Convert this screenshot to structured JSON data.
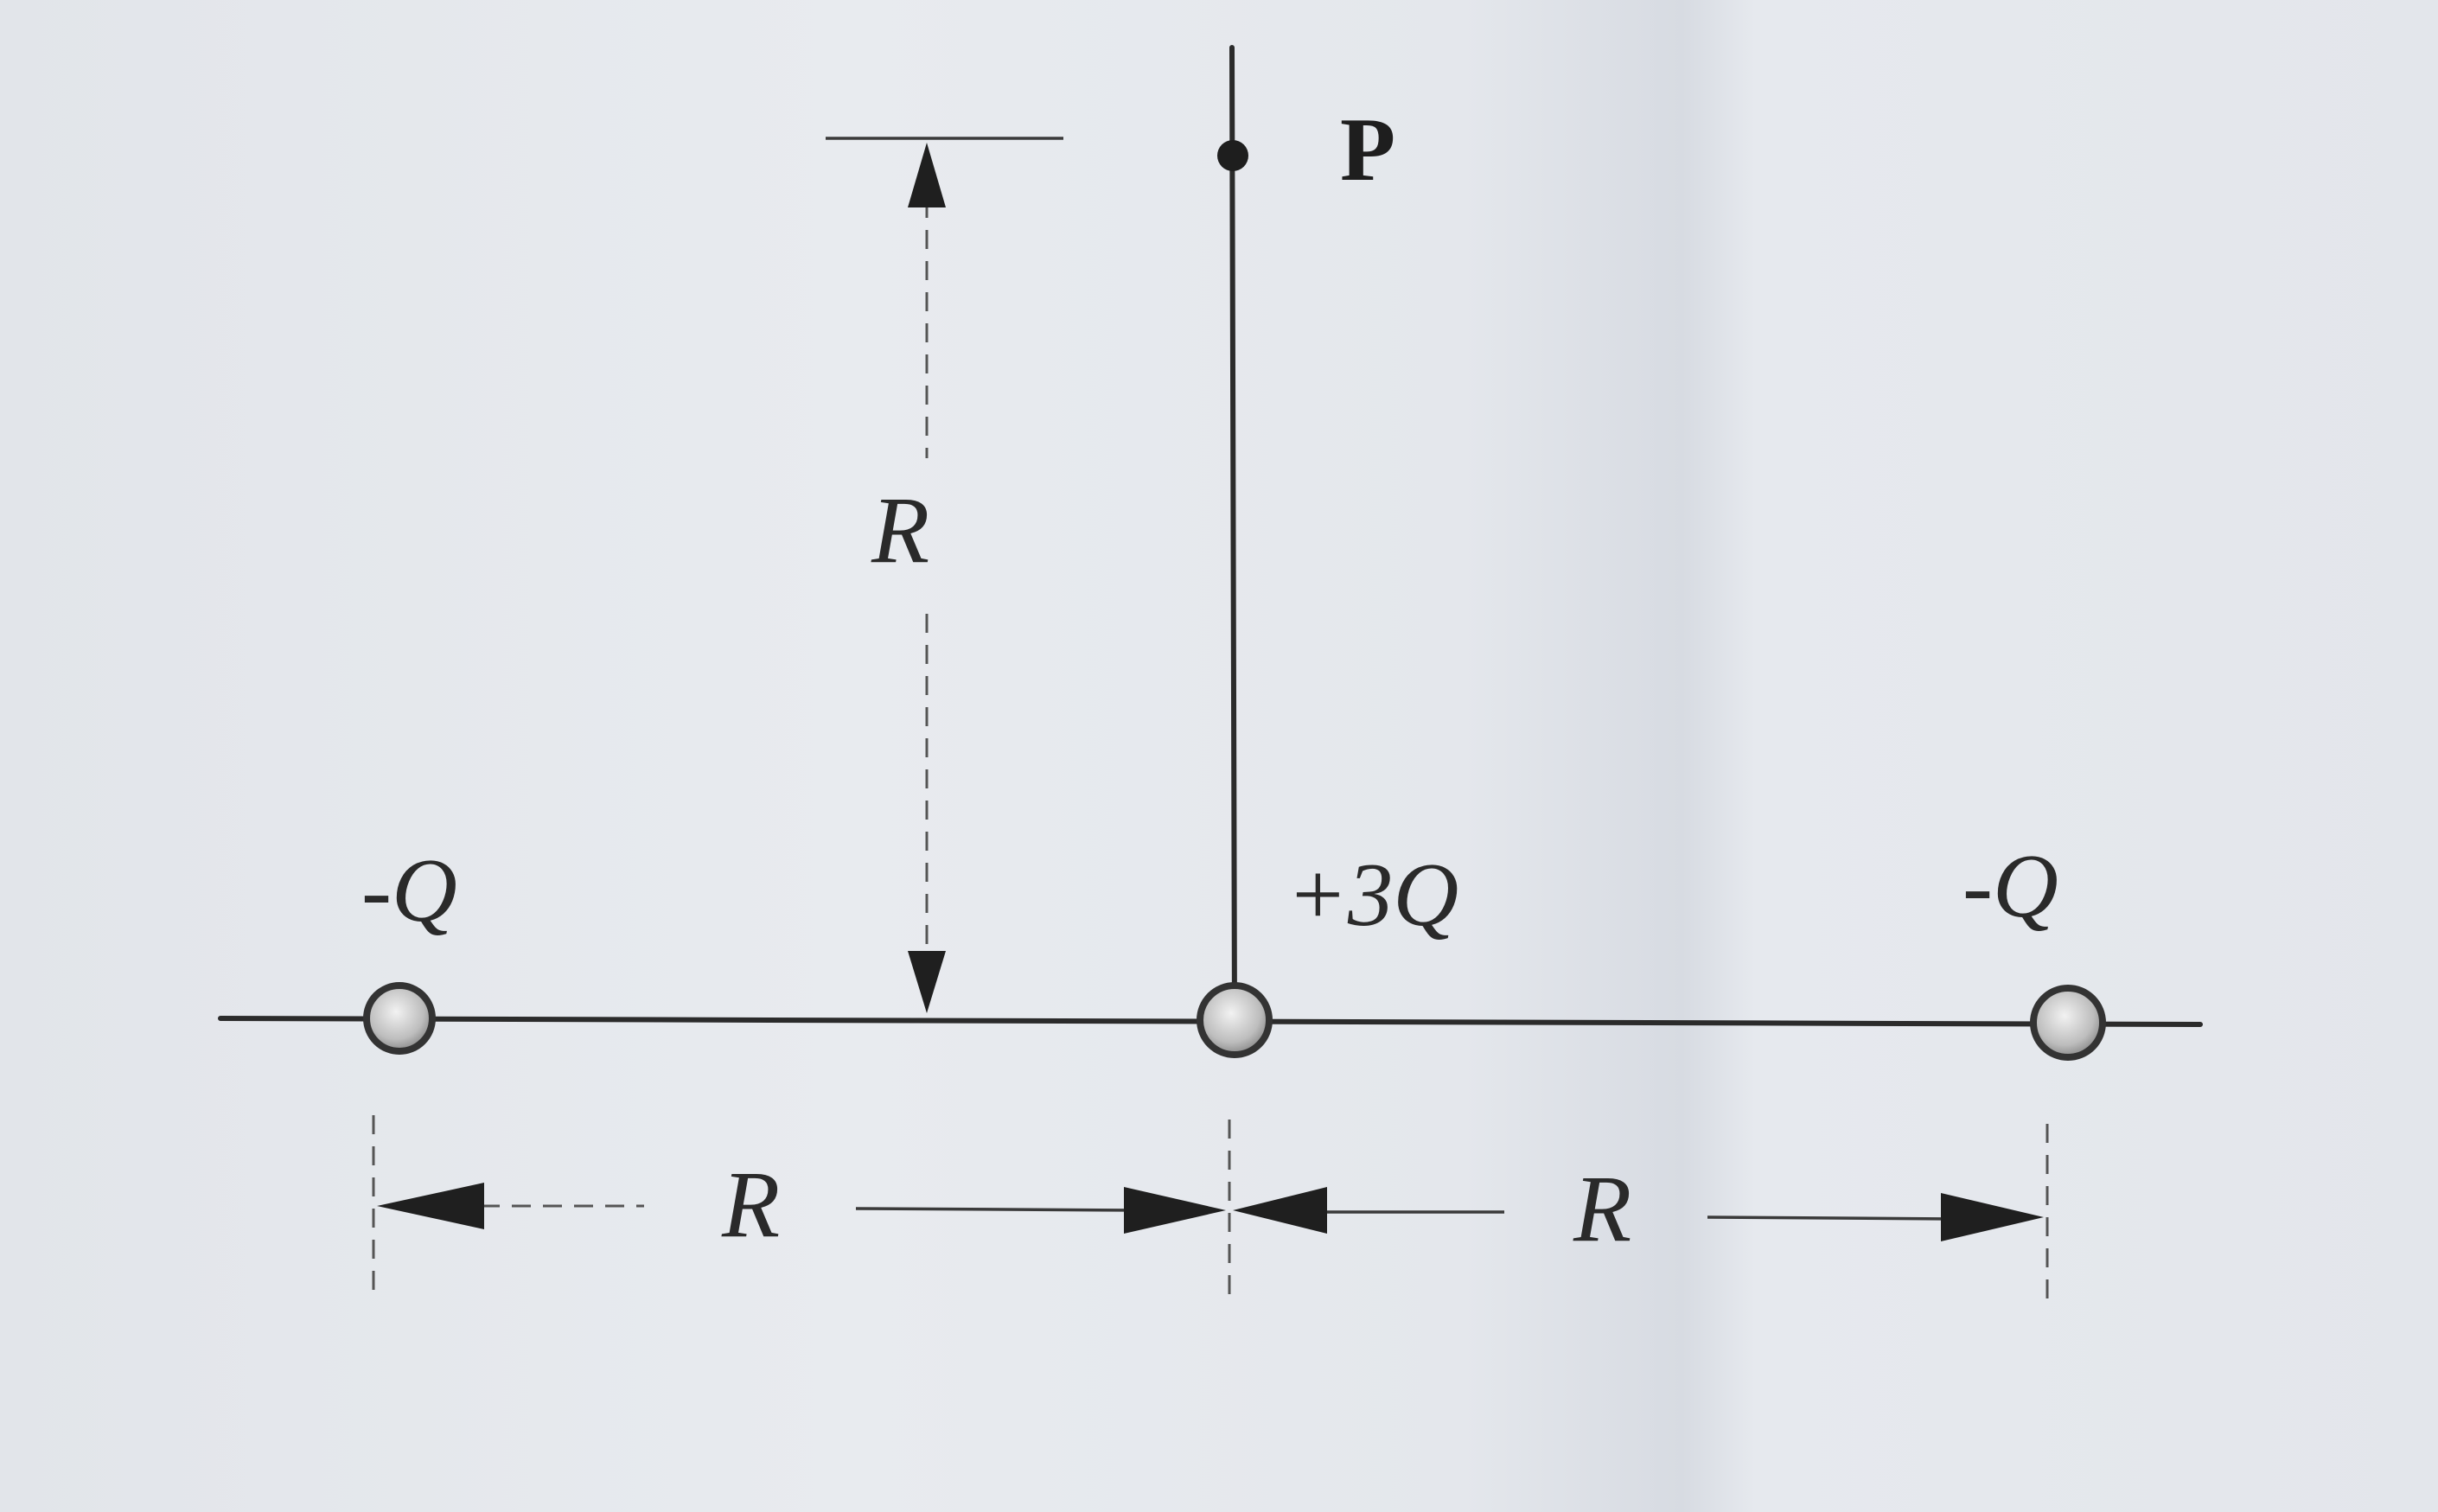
{
  "labels": {
    "point": "P",
    "vertical_distance": "R",
    "left_distance": "R",
    "right_distance": "R"
  },
  "charges": [
    {
      "label": "-Q",
      "role": "left-charge"
    },
    {
      "label": "+3Q",
      "role": "center-charge"
    },
    {
      "label": "-Q",
      "role": "right-charge"
    }
  ],
  "colors": {
    "ink": "#2b2b2b",
    "paper": "#e4e7ec",
    "charge_fill": "#c9c9c9"
  }
}
